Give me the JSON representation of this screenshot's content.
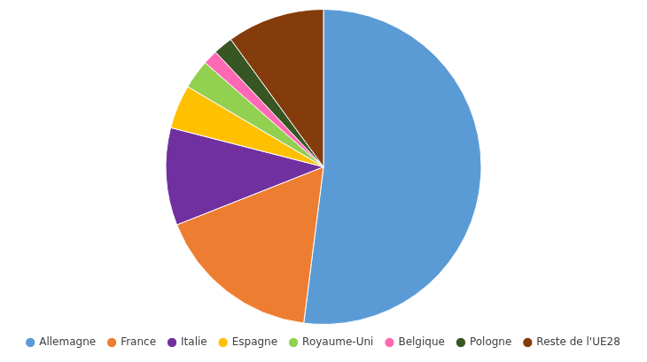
{
  "chart_data": {
    "type": "pie",
    "categories": [
      "Allemagne",
      "France",
      "Italie",
      "Espagne",
      "Royaume-Uni",
      "Belgique",
      "Pologne",
      "Reste de l'UE28"
    ],
    "values": [
      52,
      17,
      10,
      4.5,
      3,
      1.5,
      2,
      10
    ],
    "colors": [
      "#5B9BD5",
      "#ED7D31",
      "#7030A0",
      "#FFC000",
      "#92D050",
      "#FF69B4",
      "#375623",
      "#843C0C"
    ],
    "legend": "bottom"
  }
}
